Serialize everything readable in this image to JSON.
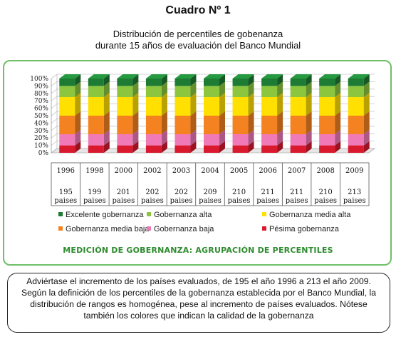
{
  "heading": "Cuadro Nº 1",
  "subtitle": {
    "line1": "Distribución de percentiles de gobenanza",
    "line2": "durante 15 años de evaluación del Banco Mundial"
  },
  "chart_data": {
    "type": "bar",
    "stacked": true,
    "three_d": true,
    "categories": [
      "1996",
      "1998",
      "2000",
      "2002",
      "2003",
      "2004",
      "2005",
      "2006",
      "2007",
      "2008",
      "2009"
    ],
    "countries": [
      195,
      199,
      201,
      202,
      202,
      209,
      210,
      211,
      211,
      210,
      213
    ],
    "countries_unit": "paises",
    "ylim": [
      0,
      100
    ],
    "ytick_labels": [
      "0%",
      "10%",
      "20%",
      "30%",
      "40%",
      "50%",
      "60%",
      "70%",
      "80%",
      "90%",
      "100%"
    ],
    "legend_position": "bottom",
    "series": [
      {
        "name": "Pésima gobernanza",
        "color": "#d8192e",
        "values": [
          10,
          10,
          10,
          10,
          10,
          10,
          10,
          10,
          10,
          10,
          10
        ]
      },
      {
        "name": "Gobernanza baja",
        "color": "#f07ab8",
        "values": [
          15,
          15,
          15,
          15,
          15,
          15,
          15,
          15,
          15,
          15,
          15
        ]
      },
      {
        "name": "Gobernanza media baja",
        "color": "#f58220",
        "values": [
          25,
          25,
          25,
          25,
          25,
          25,
          25,
          25,
          25,
          25,
          25
        ]
      },
      {
        "name": "Gobernanza media alta",
        "color": "#ffe000",
        "values": [
          25,
          25,
          25,
          25,
          25,
          25,
          25,
          25,
          25,
          25,
          25
        ]
      },
      {
        "name": "Gobernanza alta",
        "color": "#8cc63f",
        "values": [
          15,
          15,
          15,
          15,
          15,
          15,
          15,
          15,
          15,
          15,
          15
        ]
      },
      {
        "name": "Excelente gobernanza",
        "color": "#1e7b34",
        "values": [
          10,
          10,
          10,
          10,
          10,
          10,
          10,
          10,
          10,
          10,
          10
        ]
      }
    ],
    "legend_order": [
      "Excelente gobernanza",
      "Gobernanza alta",
      "Gobernanza media alta",
      "Gobernanza media baja",
      "Gobernanza baja",
      "Pésima gobernanza"
    ],
    "caption": "MEDICIÓN DE GOBERNANZA: AGRUPACIÓN DE PERCENTILES"
  },
  "note": "Adviértase el incremento de los países evaluados, de 195 el año 1996 a 213 el año 2009. Según la definición de los percentiles de la gobernanza establecida por el Banco Mundial, la distribución de rangos es homogénea, pese al incremento de países evaluados. Nótese también los colores que indican la calidad de la gobernanza"
}
